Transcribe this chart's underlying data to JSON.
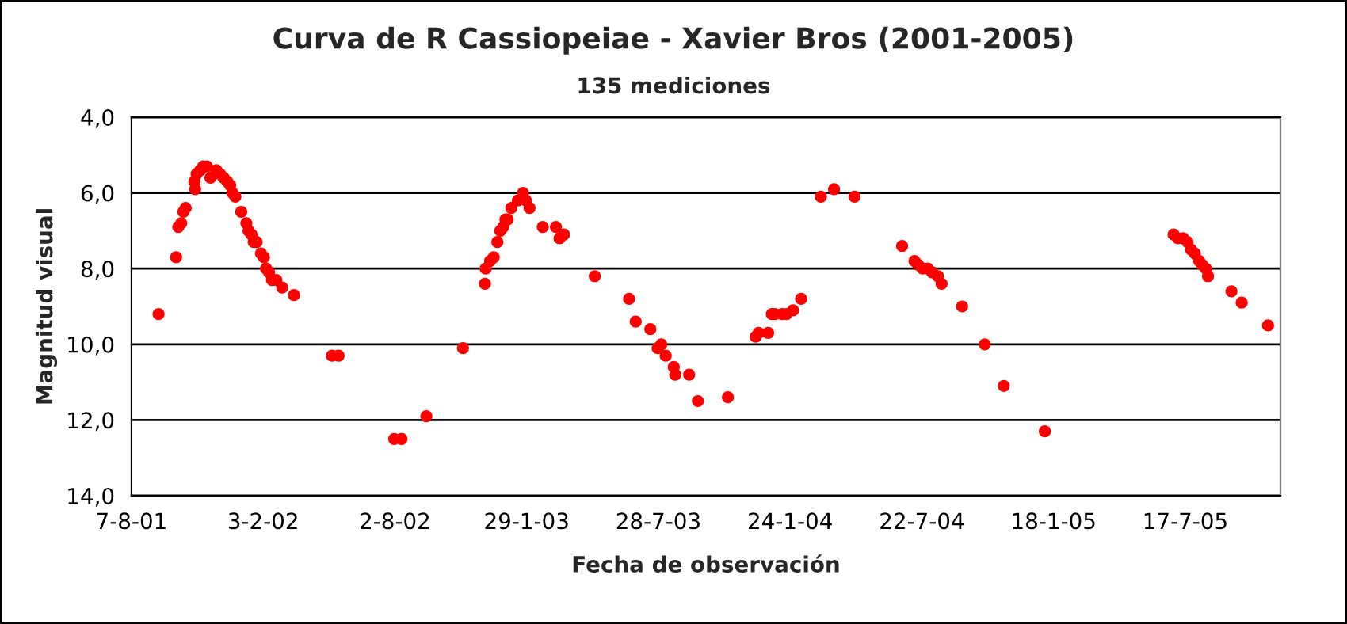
{
  "chart_data": {
    "type": "scatter",
    "title": "Curva de R Cassiopeiae - Xavier Bros (2001-2005)",
    "subtitle": "135 mediciones",
    "xlabel": "Fecha de observación",
    "ylabel": "Magnitud visual",
    "x": [
      "2001-09-13",
      "2001-10-07",
      "2001-10-10",
      "2001-10-14",
      "2001-10-17",
      "2001-10-20",
      "2001-11-02",
      "2001-11-01",
      "2001-11-04",
      "2001-11-09",
      "2001-11-13",
      "2001-11-18",
      "2001-11-23",
      "2001-12-01",
      "2001-12-06",
      "2001-12-11",
      "2001-12-16",
      "2001-12-20",
      "2001-12-23",
      "2001-12-27",
      "2002-01-04",
      "2002-01-11",
      "2002-01-14",
      "2002-01-18",
      "2002-01-21",
      "2002-01-25",
      "2002-01-31",
      "2002-02-04",
      "2002-02-07",
      "2002-02-11",
      "2002-02-15",
      "2002-02-21",
      "2002-03-01",
      "2002-03-17",
      "2002-05-08",
      "2002-05-17",
      "2002-08-01",
      "2002-08-11",
      "2002-09-14",
      "2002-11-03",
      "2002-12-03",
      "2002-12-04",
      "2002-12-10",
      "2002-12-15",
      "2002-12-20",
      "2002-12-24",
      "2002-12-28",
      "2002-12-31",
      "2003-01-03",
      "2003-01-08",
      "2003-01-17",
      "2003-01-24",
      "2003-01-28",
      "2003-02-02",
      "2003-02-20",
      "2003-03-10",
      "2003-03-15",
      "2003-03-21",
      "2003-05-02",
      "2003-06-18",
      "2003-06-27",
      "2003-07-17",
      "2003-07-27",
      "2003-08-01",
      "2003-08-07",
      "2003-08-18",
      "2003-08-20",
      "2003-09-08",
      "2003-09-20",
      "2003-10-31",
      "2003-12-08",
      "2003-12-12",
      "2003-12-25",
      "2003-12-30",
      "2004-01-03",
      "2004-01-13",
      "2004-01-19",
      "2004-01-28",
      "2004-02-08",
      "2004-03-06",
      "2004-03-24",
      "2004-04-21",
      "2004-06-25",
      "2004-07-12",
      "2004-07-17",
      "2004-07-23",
      "2004-07-30",
      "2004-08-05",
      "2004-08-13",
      "2004-08-18",
      "2004-09-15",
      "2004-10-16",
      "2004-11-11",
      "2005-01-06",
      "2005-07-01",
      "2005-07-07",
      "2005-07-14",
      "2005-07-20",
      "2005-07-25",
      "2005-07-30",
      "2005-08-05",
      "2005-08-09",
      "2005-08-14",
      "2005-08-17",
      "2005-09-18",
      "2005-10-02",
      "2005-11-07"
    ],
    "series": [
      {
        "color": "#ff0000",
        "values": [
          9.2,
          7.7,
          6.9,
          6.8,
          6.5,
          6.4,
          5.9,
          5.7,
          5.5,
          5.4,
          5.3,
          5.3,
          5.6,
          5.4,
          5.5,
          5.6,
          5.7,
          5.8,
          6.0,
          6.1,
          6.5,
          6.8,
          7.0,
          7.1,
          7.3,
          7.3,
          7.6,
          7.7,
          8.0,
          8.1,
          8.3,
          8.3,
          8.5,
          8.7,
          10.3,
          10.3,
          12.5,
          12.5,
          11.9,
          10.1,
          8.4,
          8.0,
          7.8,
          7.7,
          7.3,
          7.0,
          6.9,
          6.7,
          6.7,
          6.4,
          6.2,
          6.0,
          6.2,
          6.4,
          6.9,
          6.9,
          7.2,
          7.1,
          8.2,
          8.8,
          9.4,
          9.6,
          10.1,
          10.0,
          10.3,
          10.6,
          10.8,
          10.8,
          11.5,
          11.4,
          9.8,
          9.7,
          9.7,
          9.2,
          9.2,
          9.2,
          9.2,
          9.1,
          8.8,
          6.1,
          5.9,
          6.1,
          7.4,
          7.8,
          7.9,
          8.0,
          8.0,
          8.1,
          8.2,
          8.4,
          9.0,
          10.0,
          11.1,
          12.3,
          7.1,
          7.2,
          7.2,
          7.3,
          7.5,
          7.6,
          7.8,
          7.9,
          8.0,
          8.2,
          8.6,
          8.9,
          9.5
        ]
      }
    ],
    "xlim": [
      "2001-08-07",
      "2005-11-24"
    ],
    "xticks": [
      {
        "value": "2001-08-07",
        "label": "7-8-01"
      },
      {
        "value": "2002-02-03",
        "label": "3-2-02"
      },
      {
        "value": "2002-08-02",
        "label": "2-8-02"
      },
      {
        "value": "2003-01-29",
        "label": "29-1-03"
      },
      {
        "value": "2003-07-28",
        "label": "28-7-03"
      },
      {
        "value": "2004-01-24",
        "label": "24-1-04"
      },
      {
        "value": "2004-07-22",
        "label": "22-7-04"
      },
      {
        "value": "2005-01-18",
        "label": "18-1-05"
      },
      {
        "value": "2005-07-17",
        "label": "17-7-05"
      }
    ],
    "ylim": [
      14,
      4
    ],
    "yticks": [
      {
        "value": 4,
        "label": "4,0"
      },
      {
        "value": 6,
        "label": "6,0"
      },
      {
        "value": 8,
        "label": "8,0"
      },
      {
        "value": 10,
        "label": "10,0"
      },
      {
        "value": 12,
        "label": "12,0"
      },
      {
        "value": 14,
        "label": "14,0"
      }
    ],
    "grid": "y",
    "marker": "circle"
  }
}
